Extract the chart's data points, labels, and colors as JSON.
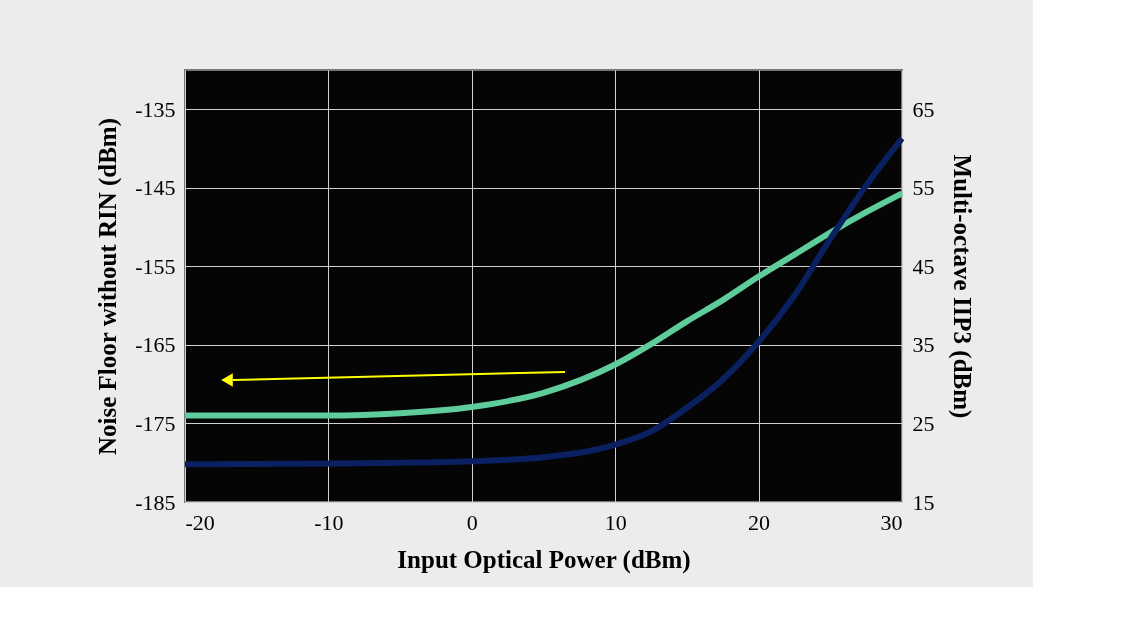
{
  "chart_data": {
    "type": "line",
    "xlabel": "Input Optical Power (dBm)",
    "ylabel": "Noise Floor without RIN (dBm)",
    "y2label": "Multi-octave IIP3 (dBm)",
    "x": [
      -20,
      -10,
      -5,
      0,
      5,
      10,
      12.5,
      15,
      17.5,
      20,
      22.5,
      25,
      27.5,
      30
    ],
    "series": [
      {
        "color": "#5fcc9c",
        "values": [
          -174.0,
          -174.0,
          -173.7,
          -172.9,
          -171.1,
          -167.5,
          -164.9,
          -162.0,
          -159.3,
          -156.3,
          -153.5,
          -150.7,
          -148.1,
          -145.7
        ]
      },
      {
        "color": "#0a2060",
        "axis": "y2",
        "values": [
          19.8,
          19.9,
          20.0,
          20.2,
          20.7,
          22.3,
          24.0,
          27.0,
          30.6,
          35.4,
          41.3,
          48.5,
          55.3,
          61.3
        ]
      }
    ],
    "xlim": [
      -20,
      30
    ],
    "xticks": [
      -20,
      -10,
      0,
      10,
      20,
      30
    ],
    "ylim": [
      -185,
      -130
    ],
    "yticks": [
      -185,
      -175,
      -165,
      -155,
      -145,
      -135
    ],
    "y2lim": [
      15,
      70
    ],
    "y2ticks": [
      15,
      25,
      35,
      45,
      55,
      65
    ],
    "grid": true,
    "marker": "none",
    "line_style": "solid"
  }
}
